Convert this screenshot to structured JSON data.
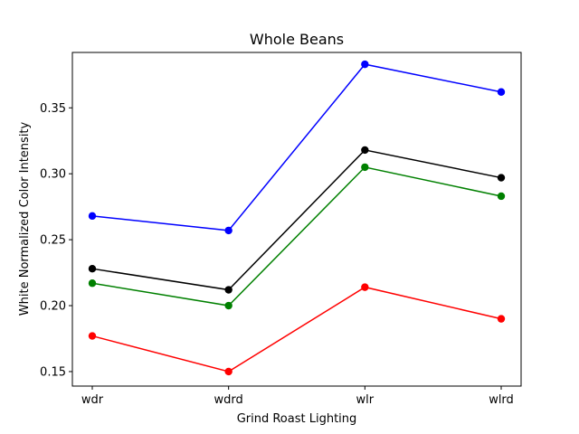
{
  "chart_data": {
    "type": "line",
    "title": "Whole Beans",
    "xlabel": "Grind Roast Lighting",
    "ylabel": "White Normalized Color Intensity",
    "categories": [
      "wdr",
      "wdrd",
      "wlr",
      "wlrd"
    ],
    "ylim": [
      0.139,
      0.392
    ],
    "yticks": [
      0.15,
      0.2,
      0.25,
      0.3,
      0.35
    ],
    "ytick_labels": [
      "0.15",
      "0.20",
      "0.25",
      "0.30",
      "0.35"
    ],
    "grid": false,
    "series": [
      {
        "color": "#0000ff",
        "values": [
          0.268,
          0.257,
          0.383,
          0.362
        ]
      },
      {
        "color": "#000000",
        "values": [
          0.228,
          0.212,
          0.318,
          0.297
        ]
      },
      {
        "color": "#008000",
        "values": [
          0.217,
          0.2,
          0.305,
          0.283
        ]
      },
      {
        "color": "#ff0000",
        "values": [
          0.177,
          0.15,
          0.214,
          0.19
        ]
      }
    ]
  }
}
